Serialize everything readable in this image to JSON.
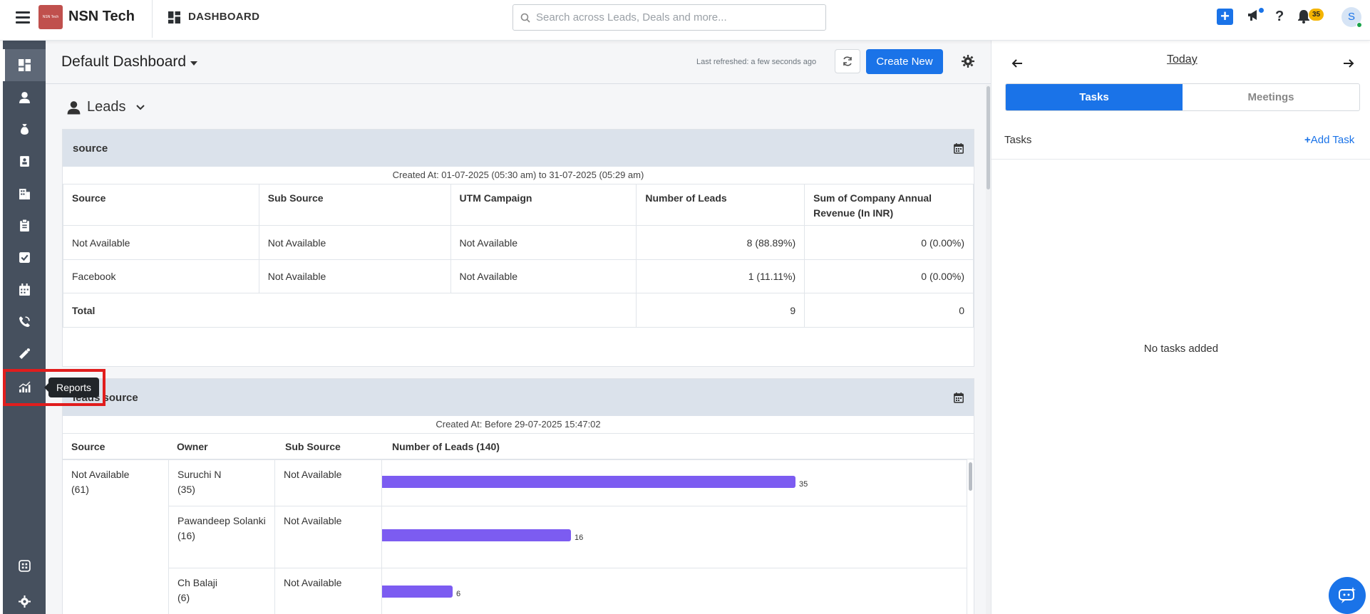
{
  "header": {
    "brand": "NSN Tech",
    "logo_text": "NSN Tech",
    "section": "DASHBOARD",
    "search_placeholder": "Search across Leads, Deals and more...",
    "notification_count": "35",
    "avatar_initial": "S"
  },
  "sidebar": {
    "items": [
      "dashboard-icon",
      "user-icon",
      "money-bag-icon",
      "contact-card-icon",
      "building-icon",
      "clipboard-icon",
      "check-square-icon",
      "calendar-icon",
      "phone-icon",
      "campaign-icon",
      "reports-icon",
      "apps-icon",
      "settings-icon"
    ],
    "tooltip": "Reports"
  },
  "main": {
    "dashboard_title": "Default Dashboard",
    "last_refreshed": "Last refreshed: a few seconds ago",
    "create_label": "Create New",
    "section_label": "Leads"
  },
  "card1": {
    "title": "source",
    "created_at": "Created At: 01-07-2025 (05:30 am) to 31-07-2025 (05:29 am)",
    "headers": [
      "Source",
      "Sub Source",
      "UTM Campaign",
      "Number of Leads",
      "Sum of Company Annual Revenue (In INR)"
    ],
    "rows": [
      [
        "Not Available",
        "Not Available",
        "Not Available",
        "8 (88.89%)",
        "0 (0.00%)"
      ],
      [
        "Facebook",
        "Not Available",
        "Not Available",
        "1 (11.11%)",
        "0 (0.00%)"
      ]
    ],
    "total_label": "Total",
    "total_leads": "9",
    "total_revenue": "0"
  },
  "card2": {
    "title": "leads source",
    "created_at": "Created At: Before 29-07-2025 15:47:02",
    "headers": [
      "Source",
      "Owner",
      "Sub Source",
      "Number of Leads (140)"
    ],
    "source": "Not Available",
    "source_count": "(61)",
    "rows": [
      {
        "owner": "Suruchi N",
        "count_label": "(35)",
        "sub_source": "Not Available",
        "value": 35
      },
      {
        "owner": "Pawandeep Solanki",
        "count_label": "(16)",
        "sub_source": "Not Available",
        "value": 16
      },
      {
        "owner": "Ch Balaji",
        "count_label": "(6)",
        "sub_source": "Not Available",
        "value": 6
      }
    ]
  },
  "right_panel": {
    "date_label": "Today",
    "tabs": [
      "Tasks",
      "Meetings"
    ],
    "tasks_label": "Tasks",
    "add_task": "Add Task",
    "empty_text": "No tasks added"
  },
  "colors": {
    "accent": "#1a73e8",
    "sidebar": "#46505e",
    "bar": "#7c5cf1",
    "highlight": "#e11d1d"
  }
}
